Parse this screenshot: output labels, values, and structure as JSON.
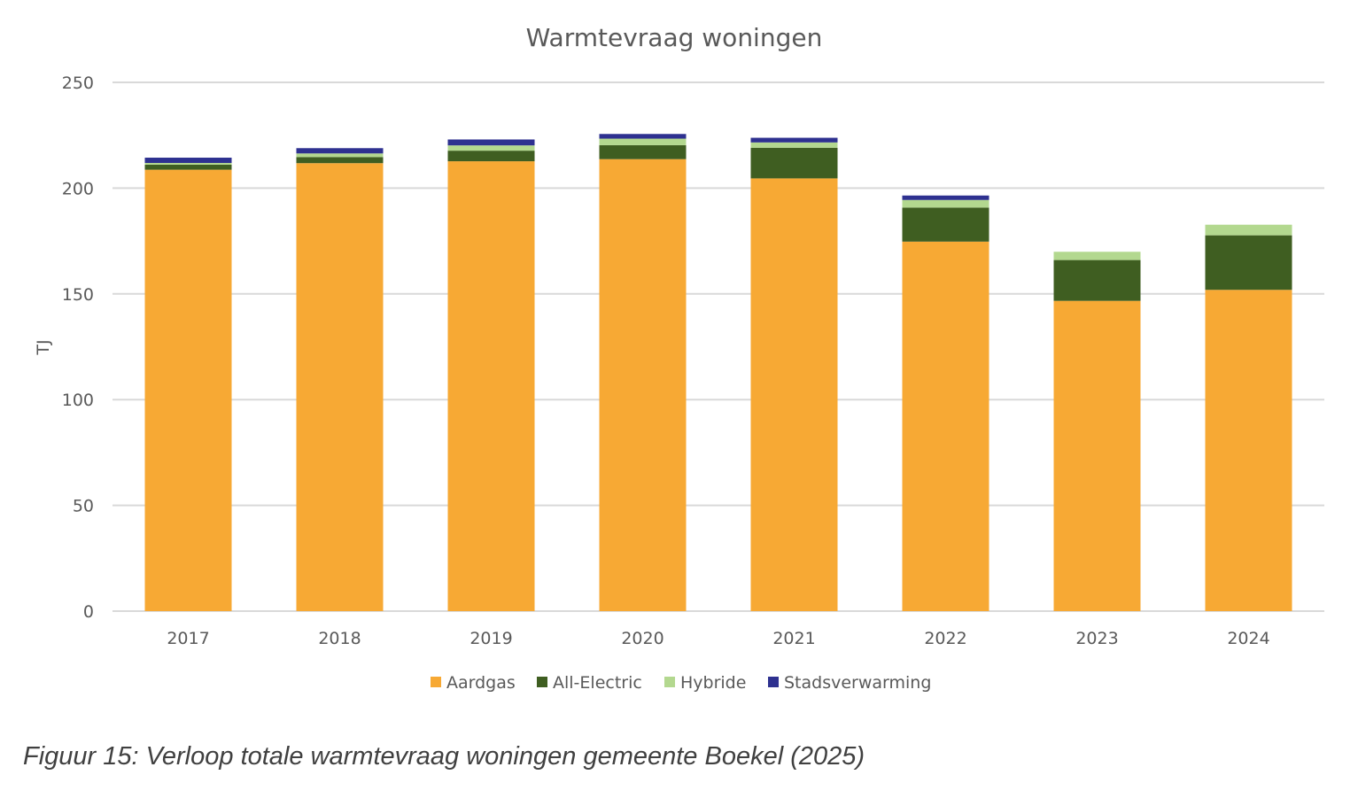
{
  "chart_data": {
    "type": "bar",
    "stacked": true,
    "title": "Warmtevraag woningen",
    "xlabel": "",
    "ylabel": "TJ",
    "ylim": [
      0,
      250
    ],
    "yticks": [
      0,
      50,
      100,
      150,
      200,
      250
    ],
    "grid": true,
    "legend_position": "bottom",
    "categories": [
      "2017",
      "2018",
      "2019",
      "2020",
      "2021",
      "2022",
      "2023",
      "2024"
    ],
    "series": [
      {
        "name": "Aardgas",
        "color": "#F7A934",
        "values": [
          208.7,
          211.8,
          212.7,
          213.7,
          204.6,
          174.7,
          146.7,
          151.9
        ]
      },
      {
        "name": "All-Electric",
        "color": "#3F5E21",
        "values": [
          2.4,
          2.9,
          5.0,
          6.6,
          14.5,
          16.1,
          19.3,
          25.8
        ]
      },
      {
        "name": "Hybride",
        "color": "#B3D88F",
        "values": [
          0.8,
          1.7,
          2.5,
          3.1,
          2.5,
          3.6,
          3.9,
          5.0
        ]
      },
      {
        "name": "Stadsverwarming",
        "color": "#2E3190",
        "values": [
          2.5,
          2.5,
          2.8,
          2.2,
          2.2,
          2.1,
          0,
          0
        ]
      }
    ]
  },
  "caption": "Figuur 15: Verloop totale warmtevraag woningen gemeente Boekel (2025)"
}
